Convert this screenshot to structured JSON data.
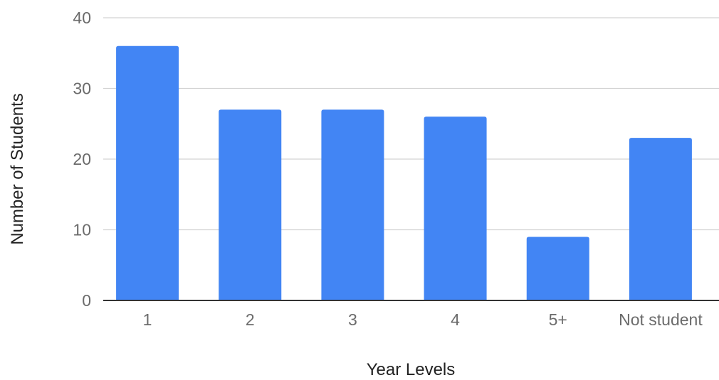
{
  "chart_data": {
    "type": "bar",
    "categories": [
      "1",
      "2",
      "3",
      "4",
      "5+",
      "Not student"
    ],
    "values": [
      36,
      27,
      27,
      26,
      9,
      23
    ],
    "xlabel": "Year Levels",
    "ylabel": "Number of Students",
    "ylim": [
      0,
      40
    ],
    "yticks": [
      0,
      10,
      20,
      30,
      40
    ],
    "grid": true,
    "bar_color": "#4285f4",
    "grid_color": "#d3d3d3",
    "baseline_color": "#333333",
    "tick_label_color": "#6b6b6b",
    "axis_title_color": "#222222"
  }
}
